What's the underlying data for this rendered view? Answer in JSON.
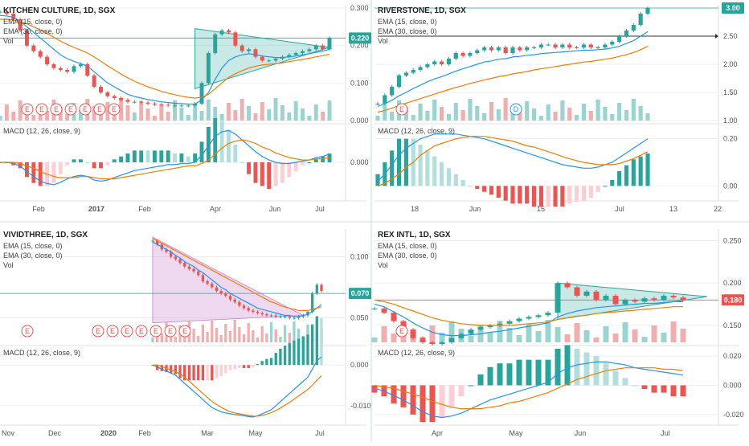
{
  "colors": {
    "up": "#26a69a",
    "down": "#ef5350",
    "ema15": "#2196f3",
    "ema30": "#f57c00",
    "macd": "#2196f3",
    "signal": "#f57c00",
    "hist_up": "#26a69a",
    "hist_up_light": "#b2dfdb",
    "hist_down": "#ef5350",
    "hist_down_light": "#ffcdd2",
    "vol_up": "#80cbc4",
    "vol_down": "#ef9a9a",
    "triangle_teal": "#26a69a",
    "triangle_purple": "#ce93d8",
    "grid": "#eceff1",
    "axis_text": "#555555",
    "earnings_circle": "#ef5350",
    "dividend_circle": "#2196f3",
    "price_label_bg": "#26a69a",
    "price_label_red": "#ef5350"
  },
  "chart_data": [
    {
      "type": "line",
      "title": "KITCHEN CULTURE, 1D, SGX",
      "indicator_labels": [
        "EMA (15, close, 0)",
        "EMA (30, close, 0)",
        "Vol"
      ],
      "macd_label": "MACD (12, 26, close, 9)",
      "price_axis": {
        "ticks": [
          "0.300",
          "0.200",
          "0.100",
          "0.000"
        ],
        "ylim": [
          0.0,
          0.3
        ]
      },
      "macd_axis": {
        "ticks": [
          "0.000"
        ],
        "ylim": [
          -0.03,
          0.03
        ]
      },
      "time_axis": [
        "Feb",
        "2017",
        "Feb",
        "Apr",
        "Jun",
        "Jul"
      ],
      "last_price": "0.220",
      "earnings_markers": [
        "E",
        "E",
        "E",
        "E",
        "E",
        "E",
        "E"
      ],
      "pattern": "symmetrical-triangle",
      "price_series": [
        0.29,
        0.285,
        0.27,
        0.24,
        0.2,
        0.185,
        0.17,
        0.15,
        0.14,
        0.135,
        0.13,
        0.145,
        0.15,
        0.12,
        0.09,
        0.075,
        0.065,
        0.06,
        0.055,
        0.05,
        0.05,
        0.048,
        0.045,
        0.043,
        0.042,
        0.04,
        0.04,
        0.04,
        0.04,
        0.045,
        0.1,
        0.18,
        0.23,
        0.24,
        0.235,
        0.2,
        0.185,
        0.19,
        0.17,
        0.16,
        0.16,
        0.165,
        0.17,
        0.175,
        0.18,
        0.185,
        0.19,
        0.2,
        0.19,
        0.22
      ],
      "ema15": [
        0.28,
        0.279,
        0.275,
        0.265,
        0.25,
        0.235,
        0.22,
        0.205,
        0.19,
        0.175,
        0.165,
        0.158,
        0.152,
        0.145,
        0.13,
        0.115,
        0.1,
        0.09,
        0.08,
        0.07,
        0.064,
        0.06,
        0.056,
        0.053,
        0.05,
        0.048,
        0.046,
        0.045,
        0.044,
        0.044,
        0.055,
        0.075,
        0.11,
        0.14,
        0.16,
        0.17,
        0.175,
        0.178,
        0.176,
        0.172,
        0.17,
        0.168,
        0.168,
        0.17,
        0.172,
        0.175,
        0.178,
        0.182,
        0.185,
        0.19
      ],
      "ema30": [
        0.27,
        0.27,
        0.268,
        0.264,
        0.258,
        0.25,
        0.242,
        0.232,
        0.222,
        0.212,
        0.203,
        0.195,
        0.188,
        0.18,
        0.17,
        0.158,
        0.146,
        0.135,
        0.124,
        0.114,
        0.105,
        0.097,
        0.09,
        0.084,
        0.078,
        0.073,
        0.069,
        0.065,
        0.062,
        0.06,
        0.062,
        0.07,
        0.085,
        0.1,
        0.115,
        0.125,
        0.133,
        0.14,
        0.145,
        0.148,
        0.15,
        0.152,
        0.154,
        0.157,
        0.16,
        0.163,
        0.166,
        0.17,
        0.173,
        0.177
      ],
      "macd": [
        0.0,
        0.0,
        -0.001,
        -0.003,
        -0.008,
        -0.012,
        -0.016,
        -0.018,
        -0.019,
        -0.017,
        -0.014,
        -0.012,
        -0.011,
        -0.012,
        -0.015,
        -0.016,
        -0.015,
        -0.013,
        -0.011,
        -0.009,
        -0.007,
        -0.006,
        -0.005,
        -0.004,
        -0.003,
        -0.002,
        -0.002,
        -0.001,
        -0.001,
        0.0,
        0.006,
        0.014,
        0.022,
        0.026,
        0.027,
        0.024,
        0.019,
        0.014,
        0.009,
        0.005,
        0.002,
        0.0,
        -0.001,
        -0.001,
        0.0,
        0.001,
        0.002,
        0.004,
        0.005,
        0.007
      ],
      "signal": [
        0.0,
        0.0,
        0.0,
        -0.001,
        -0.003,
        -0.005,
        -0.008,
        -0.01,
        -0.012,
        -0.013,
        -0.013,
        -0.013,
        -0.012,
        -0.012,
        -0.013,
        -0.014,
        -0.014,
        -0.014,
        -0.013,
        -0.012,
        -0.011,
        -0.01,
        -0.009,
        -0.008,
        -0.007,
        -0.006,
        -0.005,
        -0.004,
        -0.003,
        -0.003,
        -0.001,
        0.002,
        0.007,
        0.012,
        0.016,
        0.018,
        0.019,
        0.018,
        0.016,
        0.013,
        0.011,
        0.008,
        0.006,
        0.004,
        0.003,
        0.002,
        0.002,
        0.003,
        0.003,
        0.004
      ]
    },
    {
      "type": "line",
      "title": "RIVERSTONE, 1D, SGX",
      "indicator_labels": [
        "EMA (15, close, 0)",
        "EMA (30, close, 0)",
        "Vol"
      ],
      "macd_label": "MACD (12, 26, close, 9)",
      "price_axis": {
        "ticks": [
          "3.00",
          "2.50",
          "2.00",
          "1.50",
          "1.00"
        ],
        "ylim": [
          1.0,
          3.0
        ]
      },
      "macd_axis": {
        "ticks": [
          "0.20",
          "0.00"
        ],
        "ylim": [
          -0.05,
          0.25
        ]
      },
      "time_axis": [
        "18",
        "Jun",
        "15",
        "Jul",
        "13",
        "22"
      ],
      "last_price": "3.00",
      "earnings_markers": [
        "E"
      ],
      "dividend_markers": [
        "D"
      ],
      "pattern": "horizontal-breakout",
      "price_series": [
        1.3,
        1.45,
        1.6,
        1.8,
        1.85,
        1.9,
        1.95,
        2.0,
        2.05,
        2.0,
        2.1,
        2.2,
        2.15,
        2.2,
        2.25,
        2.3,
        2.25,
        2.3,
        2.2,
        2.3,
        2.25,
        2.3,
        2.3,
        2.35,
        2.35,
        2.3,
        2.35,
        2.3,
        2.3,
        2.35,
        2.3,
        2.3,
        2.35,
        2.4,
        2.5,
        2.6,
        2.7,
        2.9,
        3.0
      ],
      "ema15": [
        1.25,
        1.3,
        1.36,
        1.44,
        1.5,
        1.57,
        1.63,
        1.69,
        1.74,
        1.78,
        1.83,
        1.88,
        1.92,
        1.96,
        2.0,
        2.04,
        2.06,
        2.09,
        2.1,
        2.13,
        2.14,
        2.16,
        2.17,
        2.19,
        2.2,
        2.21,
        2.22,
        2.23,
        2.24,
        2.25,
        2.25,
        2.26,
        2.27,
        2.29,
        2.32,
        2.37,
        2.42,
        2.5,
        2.58
      ],
      "ema30": [
        1.15,
        1.18,
        1.22,
        1.27,
        1.31,
        1.35,
        1.39,
        1.43,
        1.47,
        1.51,
        1.55,
        1.59,
        1.62,
        1.66,
        1.69,
        1.72,
        1.75,
        1.78,
        1.8,
        1.83,
        1.85,
        1.87,
        1.9,
        1.92,
        1.94,
        1.96,
        1.98,
        2.0,
        2.02,
        2.04,
        2.05,
        2.07,
        2.09,
        2.11,
        2.14,
        2.17,
        2.21,
        2.26,
        2.32
      ],
      "macd": [
        0.02,
        0.05,
        0.09,
        0.13,
        0.16,
        0.18,
        0.2,
        0.21,
        0.22,
        0.22,
        0.22,
        0.22,
        0.215,
        0.21,
        0.205,
        0.2,
        0.19,
        0.18,
        0.17,
        0.16,
        0.15,
        0.14,
        0.13,
        0.12,
        0.11,
        0.1,
        0.09,
        0.085,
        0.08,
        0.075,
        0.075,
        0.08,
        0.09,
        0.1,
        0.12,
        0.14,
        0.16,
        0.18,
        0.2
      ],
      "signal": [
        0.0,
        0.01,
        0.03,
        0.05,
        0.08,
        0.1,
        0.13,
        0.15,
        0.17,
        0.18,
        0.19,
        0.2,
        0.205,
        0.21,
        0.21,
        0.21,
        0.205,
        0.2,
        0.195,
        0.19,
        0.18,
        0.17,
        0.165,
        0.155,
        0.145,
        0.135,
        0.125,
        0.115,
        0.107,
        0.1,
        0.095,
        0.09,
        0.09,
        0.09,
        0.095,
        0.105,
        0.115,
        0.13,
        0.145
      ]
    },
    {
      "type": "line",
      "title": "VIVIDTHREE, 1D, SGX",
      "indicator_labels": [
        "EMA (15, close, 0)",
        "EMA (30, close, 0)",
        "Vol"
      ],
      "macd_label": "MACD (12, 26, close, 9)",
      "price_axis": {
        "ticks": [
          "0.100",
          "0.050"
        ],
        "ylim": [
          0.03,
          0.12
        ]
      },
      "macd_axis": {
        "ticks": [
          "0.000",
          "-0.010"
        ],
        "ylim": [
          -0.014,
          0.004
        ]
      },
      "time_axis": [
        "Nov",
        "Dec",
        "2020",
        "Feb",
        "Mar",
        "May",
        "Jul"
      ],
      "last_price": "0.070",
      "earnings_markers": [
        "E",
        "E",
        "E",
        "E",
        "E",
        "E",
        "E",
        "E"
      ],
      "pattern": "descending-triangle",
      "price_series": [
        0.113,
        0.11,
        0.106,
        0.104,
        0.1,
        0.098,
        0.095,
        0.092,
        0.09,
        0.088,
        0.085,
        0.08,
        0.078,
        0.075,
        0.072,
        0.07,
        0.068,
        0.065,
        0.063,
        0.06,
        0.058,
        0.056,
        0.055,
        0.054,
        0.053,
        0.052,
        0.052,
        0.051,
        0.051,
        0.051,
        0.05,
        0.05,
        0.051,
        0.052,
        0.055,
        0.07,
        0.077,
        0.072
      ],
      "ema15": [
        0.112,
        0.11,
        0.108,
        0.106,
        0.104,
        0.101,
        0.099,
        0.096,
        0.094,
        0.092,
        0.089,
        0.087,
        0.084,
        0.081,
        0.078,
        0.075,
        0.073,
        0.07,
        0.068,
        0.066,
        0.064,
        0.062,
        0.06,
        0.058,
        0.057,
        0.056,
        0.055,
        0.054,
        0.053,
        0.052,
        0.052,
        0.051,
        0.051,
        0.052,
        0.053,
        0.055,
        0.058,
        0.061
      ],
      "ema30": [
        0.115,
        0.113,
        0.111,
        0.109,
        0.107,
        0.105,
        0.103,
        0.101,
        0.099,
        0.097,
        0.095,
        0.093,
        0.091,
        0.089,
        0.087,
        0.085,
        0.083,
        0.081,
        0.079,
        0.077,
        0.075,
        0.073,
        0.071,
        0.069,
        0.067,
        0.065,
        0.063,
        0.062,
        0.06,
        0.059,
        0.058,
        0.057,
        0.056,
        0.056,
        0.056,
        0.057,
        0.058,
        0.059
      ],
      "macd": [
        0.0,
        -0.0005,
        -0.001,
        -0.0015,
        -0.002,
        -0.0025,
        -0.0035,
        -0.0045,
        -0.0055,
        -0.0065,
        -0.0075,
        -0.0085,
        -0.0095,
        -0.0105,
        -0.011,
        -0.0115,
        -0.0118,
        -0.012,
        -0.0122,
        -0.0123,
        -0.0125,
        -0.0127,
        -0.0128,
        -0.0125,
        -0.012,
        -0.0115,
        -0.011,
        -0.01,
        -0.009,
        -0.008,
        -0.007,
        -0.006,
        -0.005,
        -0.004,
        -0.003,
        -0.001,
        0.001,
        0.002
      ],
      "signal": [
        0.0,
        0.0,
        -0.0004,
        -0.0008,
        -0.0012,
        -0.0016,
        -0.0022,
        -0.003,
        -0.004,
        -0.005,
        -0.006,
        -0.007,
        -0.008,
        -0.009,
        -0.0097,
        -0.0104,
        -0.011,
        -0.0115,
        -0.0118,
        -0.012,
        -0.0122,
        -0.0124,
        -0.0126,
        -0.0126,
        -0.0124,
        -0.0121,
        -0.0117,
        -0.0112,
        -0.0106,
        -0.0099,
        -0.0092,
        -0.0084,
        -0.0076,
        -0.0068,
        -0.006,
        -0.005,
        -0.0038,
        -0.0026
      ]
    },
    {
      "type": "line",
      "title": "REX INTL, 1D, SGX",
      "indicator_labels": [
        "EMA (15, close, 0)",
        "EMA (30, close, 0)",
        "Vol"
      ],
      "macd_label": "MACD (12, 26, close, 9)",
      "price_axis": {
        "ticks": [
          "0.250",
          "0.200",
          "0.150"
        ],
        "ylim": [
          0.13,
          0.26
        ]
      },
      "macd_axis": {
        "ticks": [
          "0.020",
          "0.000",
          "-0.020"
        ],
        "ylim": [
          -0.025,
          0.025
        ]
      },
      "time_axis": [
        "Apr",
        "May",
        "Jun",
        "Jul"
      ],
      "last_price": "0.180",
      "earnings_markers": [
        "E"
      ],
      "pattern": "symmetrical-triangle",
      "price_series": [
        0.17,
        0.165,
        0.155,
        0.145,
        0.135,
        0.13,
        0.128,
        0.13,
        0.135,
        0.14,
        0.145,
        0.148,
        0.15,
        0.152,
        0.155,
        0.158,
        0.16,
        0.162,
        0.165,
        0.2,
        0.195,
        0.185,
        0.19,
        0.18,
        0.185,
        0.175,
        0.18,
        0.178,
        0.182,
        0.18,
        0.185,
        0.183,
        0.18
      ],
      "ema15": [
        0.175,
        0.172,
        0.166,
        0.16,
        0.153,
        0.147,
        0.142,
        0.139,
        0.138,
        0.138,
        0.139,
        0.14,
        0.142,
        0.143,
        0.145,
        0.147,
        0.149,
        0.151,
        0.153,
        0.16,
        0.164,
        0.167,
        0.169,
        0.171,
        0.172,
        0.173,
        0.174,
        0.175,
        0.176,
        0.176,
        0.177,
        0.178,
        0.178
      ],
      "ema30": [
        0.18,
        0.178,
        0.175,
        0.171,
        0.167,
        0.163,
        0.159,
        0.156,
        0.154,
        0.152,
        0.151,
        0.15,
        0.15,
        0.15,
        0.15,
        0.151,
        0.152,
        0.153,
        0.154,
        0.157,
        0.159,
        0.161,
        0.162,
        0.164,
        0.165,
        0.166,
        0.167,
        0.168,
        0.169,
        0.17,
        0.171,
        0.172,
        0.172
      ],
      "macd": [
        -0.002,
        -0.004,
        -0.007,
        -0.01,
        -0.014,
        -0.018,
        -0.021,
        -0.022,
        -0.021,
        -0.019,
        -0.016,
        -0.013,
        -0.01,
        -0.008,
        -0.006,
        -0.004,
        -0.002,
        0.0,
        0.002,
        0.008,
        0.012,
        0.014,
        0.015,
        0.016,
        0.016,
        0.015,
        0.014,
        0.012,
        0.011,
        0.01,
        0.009,
        0.008,
        0.007
      ],
      "signal": [
        0.0,
        -0.001,
        -0.002,
        -0.004,
        -0.006,
        -0.008,
        -0.011,
        -0.013,
        -0.015,
        -0.016,
        -0.016,
        -0.016,
        -0.015,
        -0.014,
        -0.012,
        -0.011,
        -0.009,
        -0.007,
        -0.005,
        -0.002,
        0.001,
        0.004,
        0.006,
        0.008,
        0.01,
        0.011,
        0.012,
        0.012,
        0.012,
        0.012,
        0.011,
        0.011,
        0.01
      ]
    }
  ]
}
